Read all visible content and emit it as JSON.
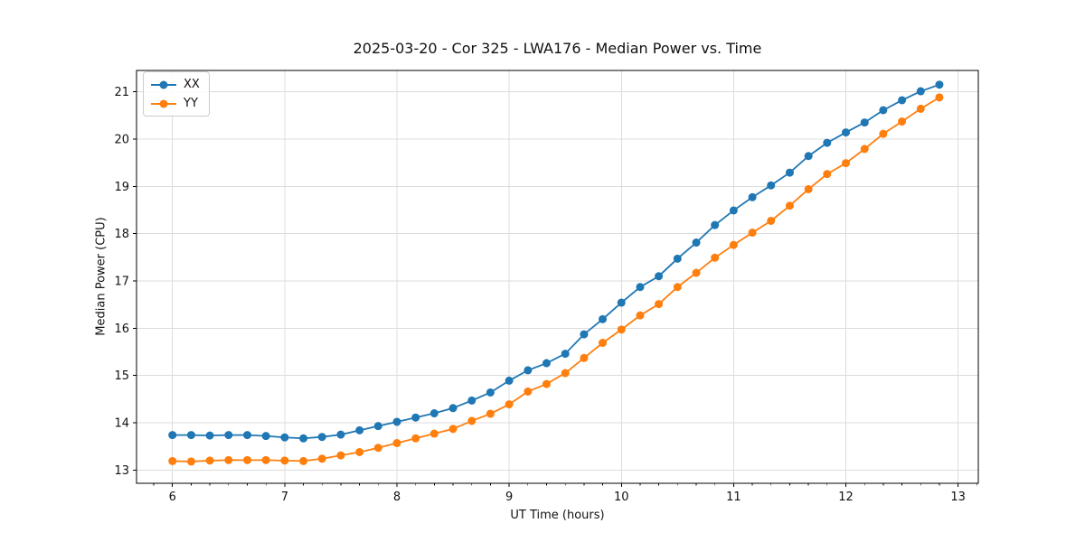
{
  "figure": {
    "background": "#ffffff",
    "text_color": "#111111",
    "grid_color": "#dcdcdc",
    "spine_color": "#000000"
  },
  "chart_data": {
    "type": "line",
    "title": "2025-03-20 - Cor 325 - LWA176 - Median Power vs. Time",
    "xlabel": "UT Time (hours)",
    "ylabel": "Median Power (CPU)",
    "xlim": [
      5.68,
      13.18
    ],
    "ylim": [
      12.72,
      21.45
    ],
    "x_ticks": [
      6,
      7,
      8,
      9,
      10,
      11,
      12,
      13
    ],
    "y_ticks": [
      13,
      14,
      15,
      16,
      17,
      18,
      19,
      20,
      21
    ],
    "x_minor_step": 0.166667,
    "grid": true,
    "legend_position": "upper left",
    "marker": "circle",
    "x": [
      6.0,
      6.167,
      6.333,
      6.5,
      6.667,
      6.833,
      7.0,
      7.167,
      7.333,
      7.5,
      7.667,
      7.833,
      8.0,
      8.167,
      8.333,
      8.5,
      8.667,
      8.833,
      9.0,
      9.167,
      9.333,
      9.5,
      9.667,
      9.833,
      10.0,
      10.167,
      10.333,
      10.5,
      10.667,
      10.833,
      11.0,
      11.167,
      11.333,
      11.5,
      11.667,
      11.833,
      12.0,
      12.167,
      12.333,
      12.5,
      12.667,
      12.833
    ],
    "series": [
      {
        "name": "XX",
        "color": "#1f77b4",
        "values": [
          13.74,
          13.74,
          13.73,
          13.74,
          13.74,
          13.72,
          13.69,
          13.67,
          13.7,
          13.75,
          13.84,
          13.93,
          14.02,
          14.11,
          14.2,
          14.31,
          14.47,
          14.64,
          14.89,
          15.11,
          15.26,
          15.46,
          15.87,
          16.19,
          16.54,
          16.87,
          17.1,
          17.47,
          17.81,
          18.18,
          18.49,
          18.77,
          19.02,
          19.29,
          19.64,
          19.92,
          20.14,
          20.35,
          20.61,
          20.82,
          21.01,
          21.15
        ]
      },
      {
        "name": "YY",
        "color": "#ff7f0e",
        "values": [
          13.19,
          13.18,
          13.2,
          13.21,
          13.21,
          13.21,
          13.2,
          13.19,
          13.24,
          13.31,
          13.38,
          13.47,
          13.57,
          13.67,
          13.77,
          13.87,
          14.04,
          14.19,
          14.39,
          14.66,
          14.82,
          15.05,
          15.37,
          15.69,
          15.97,
          16.27,
          16.51,
          16.87,
          17.17,
          17.49,
          17.76,
          18.02,
          18.27,
          18.59,
          18.94,
          19.26,
          19.49,
          19.79,
          20.11,
          20.37,
          20.64,
          20.88
        ]
      }
    ]
  }
}
